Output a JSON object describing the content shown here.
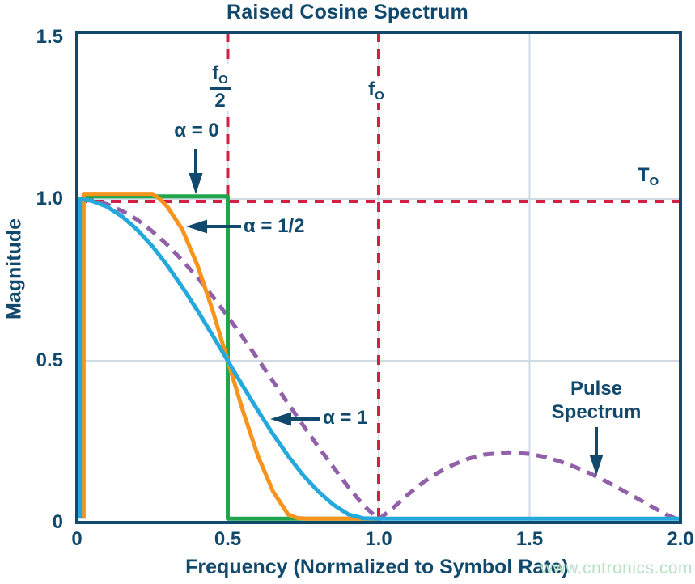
{
  "title": "Raised Cosine Spectrum",
  "axis": {
    "xlabel": "Frequency (Normalized to Symbol Rate)",
    "ylabel": "Magnitude",
    "x_ticks": [
      {
        "label": "0",
        "value": 0
      },
      {
        "label": "0.5",
        "value": 0.5
      },
      {
        "label": "1.0",
        "value": 1.0
      },
      {
        "label": "1.5",
        "value": 1.5
      },
      {
        "label": "2.0",
        "value": 2.0
      }
    ],
    "y_ticks": [
      {
        "label": "0",
        "value": 0
      },
      {
        "label": "0.5",
        "value": 0.5
      },
      {
        "label": "1.0",
        "value": 1.0
      },
      {
        "label": "1.5",
        "value": 1.5
      }
    ],
    "xlim": [
      0,
      2.0
    ],
    "ylim": [
      0,
      1.5
    ]
  },
  "colors": {
    "navy": "#11496d",
    "red": "#d21f42",
    "green": "#21a54b",
    "orange": "#f8941d",
    "cyan": "#25a8dc",
    "purple": "#9160a8",
    "grid": "#cfdae4",
    "watermark": "#b7e0c6"
  },
  "watermark": "www.cntronics.com",
  "chart_data": {
    "type": "line",
    "title": "Raised Cosine Spectrum",
    "xlabel": "Frequency (Normalized to Symbol Rate)",
    "ylabel": "Magnitude",
    "xlim": [
      0,
      2.0
    ],
    "ylim": [
      0,
      1.5
    ],
    "grid": "on",
    "gridlines": {
      "x": [
        0.5,
        1.0,
        1.5
      ],
      "y": [
        0.5,
        1.0
      ]
    },
    "reference_lines": [
      {
        "name": "fo-over-2-line",
        "orient": "v",
        "value": 0.5
      },
      {
        "name": "fo-line",
        "orient": "v",
        "value": 1.0
      },
      {
        "name": "To-line",
        "orient": "h",
        "value": 1.0
      }
    ],
    "series": [
      {
        "name": "pulse-spectrum",
        "label": "Pulse Spectrum",
        "color": "purple",
        "dash": "13 9",
        "width": 5,
        "points": [
          [
            0.02,
            0.999
          ],
          [
            0.05,
            0.996
          ],
          [
            0.1,
            0.984
          ],
          [
            0.15,
            0.963
          ],
          [
            0.2,
            0.936
          ],
          [
            0.25,
            0.9
          ],
          [
            0.3,
            0.858
          ],
          [
            0.35,
            0.81
          ],
          [
            0.4,
            0.757
          ],
          [
            0.45,
            0.699
          ],
          [
            0.5,
            0.637
          ],
          [
            0.55,
            0.572
          ],
          [
            0.6,
            0.505
          ],
          [
            0.65,
            0.436
          ],
          [
            0.7,
            0.368
          ],
          [
            0.75,
            0.3
          ],
          [
            0.8,
            0.234
          ],
          [
            0.85,
            0.171
          ],
          [
            0.9,
            0.109
          ],
          [
            0.95,
            0.053
          ],
          [
            1.0,
            0.01
          ],
          [
            1.05,
            0.047
          ],
          [
            1.1,
            0.089
          ],
          [
            1.15,
            0.126
          ],
          [
            1.2,
            0.156
          ],
          [
            1.25,
            0.18
          ],
          [
            1.3,
            0.198
          ],
          [
            1.35,
            0.21
          ],
          [
            1.43,
            0.217
          ],
          [
            1.5,
            0.212
          ],
          [
            1.55,
            0.203
          ],
          [
            1.6,
            0.189
          ],
          [
            1.65,
            0.172
          ],
          [
            1.7,
            0.152
          ],
          [
            1.75,
            0.129
          ],
          [
            1.8,
            0.104
          ],
          [
            1.85,
            0.078
          ],
          [
            1.9,
            0.052
          ],
          [
            1.95,
            0.026
          ],
          [
            2.0,
            0.006
          ]
        ]
      },
      {
        "name": "alpha-0",
        "label": "α = 0",
        "color": "green",
        "dash": null,
        "width": 5,
        "points": [
          [
            0.022,
            0.012
          ],
          [
            0.022,
            1.008
          ],
          [
            0.5,
            1.008
          ],
          [
            0.5,
            0.012
          ],
          [
            1.0,
            0.012
          ]
        ]
      },
      {
        "name": "alpha-half",
        "label": "α = 1/2",
        "color": "orange",
        "dash": null,
        "width": 5,
        "points": [
          [
            0.022,
            0.012
          ],
          [
            0.022,
            1.016
          ],
          [
            0.25,
            1.016
          ],
          [
            0.275,
            1.0
          ],
          [
            0.3,
            0.976
          ],
          [
            0.35,
            0.905
          ],
          [
            0.4,
            0.794
          ],
          [
            0.45,
            0.655
          ],
          [
            0.5,
            0.5
          ],
          [
            0.55,
            0.346
          ],
          [
            0.6,
            0.206
          ],
          [
            0.65,
            0.096
          ],
          [
            0.7,
            0.025
          ],
          [
            0.73,
            0.014
          ],
          [
            0.76,
            0.012
          ],
          [
            1.0,
            0.012
          ]
        ]
      },
      {
        "name": "alpha-1",
        "label": "α = 1",
        "color": "cyan",
        "dash": null,
        "width": 5,
        "points": [
          [
            0.01,
            0.012
          ],
          [
            0.01,
            1.0
          ],
          [
            0.05,
            0.994
          ],
          [
            0.1,
            0.976
          ],
          [
            0.15,
            0.946
          ],
          [
            0.2,
            0.905
          ],
          [
            0.25,
            0.854
          ],
          [
            0.3,
            0.794
          ],
          [
            0.35,
            0.727
          ],
          [
            0.4,
            0.655
          ],
          [
            0.45,
            0.578
          ],
          [
            0.5,
            0.5
          ],
          [
            0.55,
            0.422
          ],
          [
            0.6,
            0.346
          ],
          [
            0.65,
            0.273
          ],
          [
            0.7,
            0.206
          ],
          [
            0.75,
            0.146
          ],
          [
            0.8,
            0.096
          ],
          [
            0.85,
            0.055
          ],
          [
            0.9,
            0.025
          ],
          [
            0.95,
            0.013
          ],
          [
            1.0,
            0.012
          ],
          [
            2.0,
            0.012
          ]
        ]
      }
    ],
    "arrows": [
      {
        "name": "alpha-0-arrow",
        "dir": "down",
        "x": 242,
        "y1": 184,
        "y2": 240
      },
      {
        "name": "alpha-half-arrow",
        "dir": "left",
        "y": 280,
        "x1": 298,
        "x2": 230
      },
      {
        "name": "alpha-1-arrow",
        "dir": "left",
        "y": 518,
        "x1": 395,
        "x2": 334
      },
      {
        "name": "pulse-arrow",
        "dir": "down",
        "x": 737,
        "y1": 528,
        "y2": 588
      }
    ]
  },
  "annotations": {
    "alpha0": "α = 0",
    "alpha_half": "α = 1/2",
    "alpha1": "α = 1",
    "pulse_line1": "Pulse",
    "pulse_line2": "Spectrum",
    "fo2_num_base": "f",
    "fo2_num_sub": "O",
    "fo2_den": "2",
    "fo_base": "f",
    "fo_sub": "O",
    "to_base": "T",
    "to_sub": "O"
  }
}
